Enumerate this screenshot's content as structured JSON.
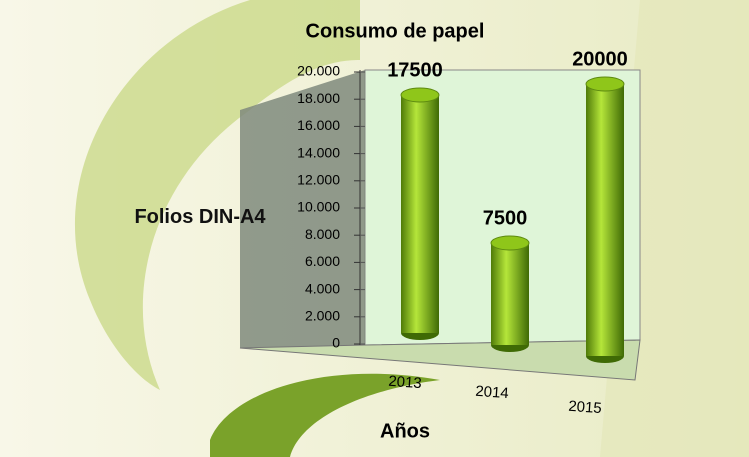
{
  "chart_data": {
    "type": "bar",
    "title": "Consumo de papel",
    "x_label": "Años",
    "y_label": "Folios DIN-A4",
    "categories": [
      "2013",
      "2014",
      "2015"
    ],
    "values": [
      17500,
      7500,
      20000
    ],
    "color": "#8fc61a",
    "ylim": [
      0,
      20000
    ],
    "yticks": [
      0,
      {
        "value": 2000,
        "label": "2.000"
      },
      {
        "value": 4000,
        "label": "4.000"
      },
      {
        "value": 6000,
        "label": "6.000"
      },
      {
        "value": 8000,
        "label": "8.000"
      },
      {
        "value": 10000,
        "label": "10.000"
      },
      {
        "value": 12000,
        "label": "12.000"
      },
      {
        "value": 14000,
        "label": "14.000"
      },
      {
        "value": 16000,
        "label": "16.000"
      },
      {
        "value": 18000,
        "label": "18.000"
      },
      {
        "value": 20000,
        "label": "20.000"
      }
    ]
  }
}
